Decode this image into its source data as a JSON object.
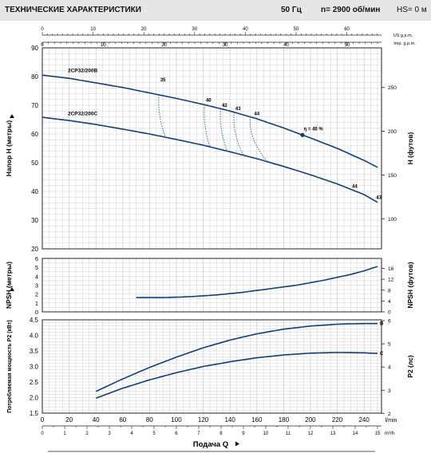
{
  "header": {
    "title": "ТЕХНИЧЕСКИЕ ХАРАКТЕРИСТИКИ",
    "freq": "50 Гц",
    "speed": "n= 2900  об/мин",
    "hs": "HS= 0 м"
  },
  "colors": {
    "curve": "#123f73",
    "grid": "#cfcfcf",
    "header_bg": "#e6e6e6"
  },
  "chart_data": [
    {
      "type": "line",
      "title": "",
      "ylabel": "Напор H  (метры)",
      "ylabel_right": "H  (футов)",
      "top_axis_us_label": "US g.p.m.",
      "top_axis_imp_label": "Imp. g.p.m.",
      "top_axis_us_ticks": [
        "0",
        "10",
        "20",
        "30",
        "40",
        "50",
        "60"
      ],
      "top_axis_imp_ticks": [
        "0",
        "10",
        "20",
        "30",
        "40",
        "50"
      ],
      "ylim": [
        20,
        90
      ],
      "yticks": [
        "20",
        "30",
        "40",
        "50",
        "60",
        "70",
        "80",
        "90"
      ],
      "yticks_right": [
        "100",
        "150",
        "200",
        "250"
      ],
      "series": [
        {
          "name": "2CP32/200B",
          "x": [
            0,
            20,
            40,
            60,
            80,
            100,
            120,
            140,
            160,
            180,
            200,
            220,
            240,
            250
          ],
          "y": [
            80.5,
            79.4,
            77.8,
            76.2,
            74.3,
            72.4,
            70.3,
            68.0,
            65.3,
            62.1,
            58.6,
            55.0,
            50.8,
            48.4
          ]
        },
        {
          "name": "2CP32/200C",
          "x": [
            0,
            20,
            40,
            60,
            80,
            100,
            120,
            140,
            160,
            180,
            200,
            220,
            240,
            250
          ],
          "y": [
            65.8,
            64.7,
            63.3,
            61.7,
            60.0,
            58.1,
            56.1,
            53.8,
            51.4,
            48.7,
            45.8,
            42.6,
            38.9,
            36.2
          ]
        }
      ],
      "efficiency_labels": [
        "35",
        "40",
        "42",
        "43",
        "44",
        "η = 46 %",
        "44",
        "43"
      ]
    },
    {
      "type": "line",
      "title": "",
      "ylabel": "NPSH  (метры)",
      "ylabel_right": "NPSH  (футов)",
      "ylim": [
        0,
        6
      ],
      "yticks": [
        "0",
        "1",
        "2",
        "3",
        "4",
        "5",
        "6"
      ],
      "yticks_right": [
        "0",
        "4",
        "8",
        "12",
        "16"
      ],
      "series": [
        {
          "x": [
            70,
            90,
            110,
            130,
            150,
            170,
            190,
            210,
            230,
            240,
            250
          ],
          "y": [
            1.6,
            1.6,
            1.7,
            1.9,
            2.2,
            2.6,
            3.0,
            3.55,
            4.2,
            4.6,
            5.1
          ]
        }
      ]
    },
    {
      "type": "line",
      "title": "",
      "ylabel": "Потребляемая мощность P2 (кВт)",
      "ylabel_right": "P2  (лс)",
      "ylim": [
        1.5,
        4.5
      ],
      "yticks": [
        "1.5",
        "2.0",
        "2.5",
        "3.0",
        "3.5",
        "4.0",
        "4.5"
      ],
      "yticks_right": [
        "2",
        "3",
        "4",
        "5",
        "6"
      ],
      "series": [
        {
          "name": "B",
          "x": [
            40,
            60,
            80,
            100,
            120,
            140,
            160,
            180,
            200,
            220,
            240,
            250
          ],
          "y": [
            2.2,
            2.6,
            2.97,
            3.3,
            3.6,
            3.85,
            4.05,
            4.2,
            4.3,
            4.36,
            4.38,
            4.38
          ]
        },
        {
          "name": "C",
          "x": [
            40,
            60,
            80,
            100,
            120,
            140,
            160,
            180,
            200,
            220,
            240,
            250
          ],
          "y": [
            1.98,
            2.3,
            2.57,
            2.8,
            3.0,
            3.15,
            3.28,
            3.37,
            3.43,
            3.45,
            3.44,
            3.42
          ]
        }
      ],
      "xlabel": "Подача Q",
      "x_unit_lmin": "l/min",
      "x_unit_m3h": "m³/h",
      "xticks_lmin": [
        "0",
        "20",
        "40",
        "60",
        "80",
        "100",
        "120",
        "140",
        "160",
        "180",
        "200",
        "220",
        "240"
      ],
      "xticks_m3h": [
        "0",
        "1",
        "2",
        "3",
        "4",
        "5",
        "6",
        "7",
        "8",
        "9",
        "10",
        "11",
        "12",
        "13",
        "14",
        "15"
      ]
    }
  ]
}
